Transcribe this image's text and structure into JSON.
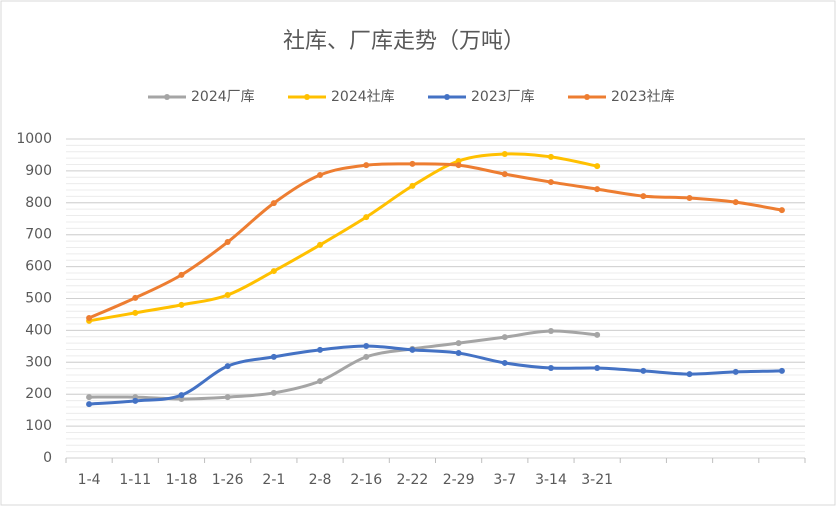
{
  "chart_data": {
    "type": "line",
    "title": "社库、厂库走势（万吨）",
    "categories": [
      "1-4",
      "1-11",
      "1-18",
      "1-26",
      "2-1",
      "2-8",
      "2-16",
      "2-22",
      "2-29",
      "3-7",
      "3-14",
      "3-21",
      null,
      null,
      null,
      null
    ],
    "series": [
      {
        "name": "2024厂库",
        "color": "#a5a5a5",
        "values": [
          191,
          191,
          185,
          191,
          204,
          241,
          317,
          342,
          360,
          379,
          398,
          386,
          null,
          null,
          null,
          null
        ]
      },
      {
        "name": "2024社库",
        "color": "#ffc000",
        "values": [
          430,
          455,
          480,
          511,
          586,
          668,
          755,
          853,
          931,
          953,
          944,
          915,
          null,
          null,
          null,
          null
        ]
      },
      {
        "name": "2023厂库",
        "color": "#4472c4",
        "values": [
          169,
          179,
          197,
          288,
          317,
          339,
          351,
          339,
          329,
          298,
          282,
          282,
          273,
          263,
          270,
          273
        ]
      },
      {
        "name": "2023社库",
        "color": "#ed7d31",
        "values": [
          439,
          502,
          574,
          677,
          799,
          887,
          918,
          922,
          918,
          890,
          865,
          843,
          821,
          815,
          802,
          777
        ]
      }
    ],
    "ylim": [
      0,
      1000
    ],
    "yticks": [
      0,
      100,
      200,
      300,
      400,
      500,
      600,
      700,
      800,
      900,
      1000
    ],
    "grid": true,
    "legend": "top"
  }
}
